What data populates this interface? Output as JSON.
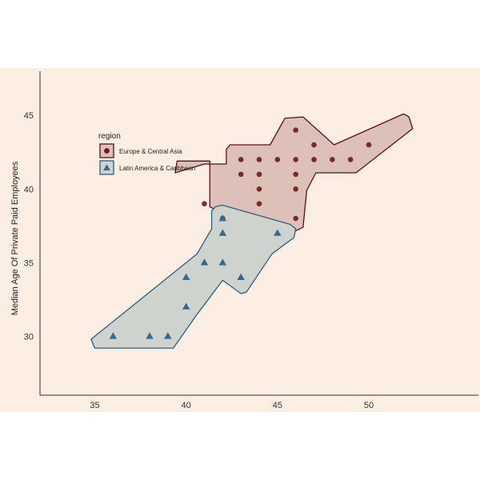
{
  "chart_data": {
    "type": "scatter",
    "title": "",
    "xlabel": "",
    "ylabel": "Median Age Of Private Paid Employees",
    "xlim": [
      32,
      56
    ],
    "ylim": [
      26,
      48
    ],
    "xticks": [
      35,
      40,
      45,
      50
    ],
    "yticks": [
      30,
      35,
      40,
      45
    ],
    "grid": false,
    "background": "#fdeee3",
    "legend": {
      "title": "region",
      "placement": "top-left"
    },
    "series": [
      {
        "name": "Europe & Central Asia",
        "marker": "circle",
        "color": "#6b1a1f",
        "hull_fill": "#ddc1b8",
        "hull_stroke": "#5b0f16",
        "points": [
          {
            "x": 41,
            "y": 39
          },
          {
            "x": 42,
            "y": 38
          },
          {
            "x": 43,
            "y": 42
          },
          {
            "x": 43,
            "y": 41
          },
          {
            "x": 44,
            "y": 42
          },
          {
            "x": 44,
            "y": 41
          },
          {
            "x": 44,
            "y": 40
          },
          {
            "x": 44,
            "y": 39
          },
          {
            "x": 45,
            "y": 42
          },
          {
            "x": 46,
            "y": 44
          },
          {
            "x": 46,
            "y": 42
          },
          {
            "x": 46,
            "y": 41
          },
          {
            "x": 46,
            "y": 40
          },
          {
            "x": 46,
            "y": 38
          },
          {
            "x": 47,
            "y": 43
          },
          {
            "x": 47,
            "y": 42
          },
          {
            "x": 48,
            "y": 42
          },
          {
            "x": 49,
            "y": 42
          },
          {
            "x": 50,
            "y": 43
          }
        ],
        "hull": [
          [
            39.5,
            41.9
          ],
          [
            41.3,
            41.9
          ],
          [
            41.3,
            38.8
          ],
          [
            43.1,
            37.6
          ],
          [
            45.9,
            37.1
          ],
          [
            46.4,
            37.4
          ],
          [
            46.6,
            39.9
          ],
          [
            47.1,
            41.1
          ],
          [
            49.3,
            41.1
          ],
          [
            52.4,
            44.1
          ],
          [
            52.2,
            44.9
          ],
          [
            51.9,
            45.1
          ],
          [
            48.1,
            43.0
          ],
          [
            46.4,
            44.9
          ],
          [
            45.4,
            44.8
          ],
          [
            44.6,
            43.0
          ],
          [
            42.4,
            43.0
          ],
          [
            42.2,
            42.7
          ],
          [
            42.2,
            41.7
          ],
          [
            41.0,
            41.7
          ],
          [
            39.4,
            41.1
          ]
        ]
      },
      {
        "name": "Latin America & Caribbean",
        "marker": "triangle",
        "color": "#2f6b8d",
        "hull_fill": "#cfd3ce",
        "hull_stroke": "#2b5f80",
        "points": [
          {
            "x": 36,
            "y": 30
          },
          {
            "x": 38,
            "y": 30
          },
          {
            "x": 39,
            "y": 30
          },
          {
            "x": 40,
            "y": 34
          },
          {
            "x": 40,
            "y": 32
          },
          {
            "x": 41,
            "y": 35
          },
          {
            "x": 42,
            "y": 38
          },
          {
            "x": 42,
            "y": 37
          },
          {
            "x": 42,
            "y": 35
          },
          {
            "x": 43,
            "y": 34
          },
          {
            "x": 45,
            "y": 37
          }
        ],
        "hull": [
          [
            35.0,
            29.2
          ],
          [
            39.3,
            29.2
          ],
          [
            40.6,
            31.5
          ],
          [
            42.0,
            33.8
          ],
          [
            43.0,
            32.9
          ],
          [
            43.3,
            33.0
          ],
          [
            44.7,
            35.6
          ],
          [
            45.9,
            36.7
          ],
          [
            46.0,
            37.3
          ],
          [
            45.7,
            37.6
          ],
          [
            42.0,
            38.9
          ],
          [
            41.6,
            38.8
          ],
          [
            41.4,
            38.5
          ],
          [
            41.4,
            37.3
          ],
          [
            40.6,
            35.6
          ],
          [
            34.8,
            29.8
          ]
        ]
      }
    ]
  }
}
